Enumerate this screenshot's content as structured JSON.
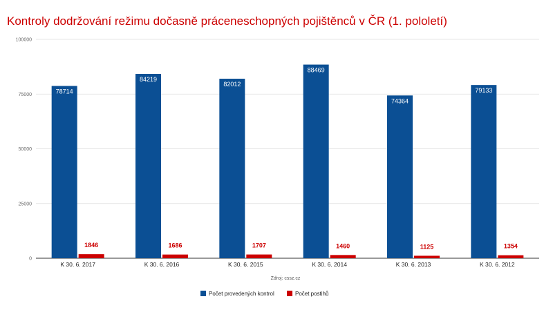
{
  "chart_data": {
    "type": "bar",
    "title": "Kontroly dodržování režimu dočasně práceneschopných pojištěnců v ČR (1. pololetí)",
    "categories": [
      "K 30. 6. 2017",
      "K 30. 6. 2016",
      "K 30. 6. 2015",
      "K 30. 6. 2014",
      "K 30. 6. 2013",
      "K 30. 6. 2012"
    ],
    "series": [
      {
        "name": "Počet provedených kontrol",
        "color": "#0b4f94",
        "values": [
          78714,
          84219,
          82012,
          88469,
          74364,
          79133
        ]
      },
      {
        "name": "Počet postihů",
        "color": "#cc0000",
        "values": [
          1846,
          1686,
          1707,
          1460,
          1125,
          1354
        ]
      }
    ],
    "ylim": [
      0,
      100000
    ],
    "yticks": [
      0,
      25000,
      50000,
      75000,
      100000
    ],
    "grid": true,
    "legend": "bottom",
    "source": "Zdroj: cssz.cz"
  }
}
